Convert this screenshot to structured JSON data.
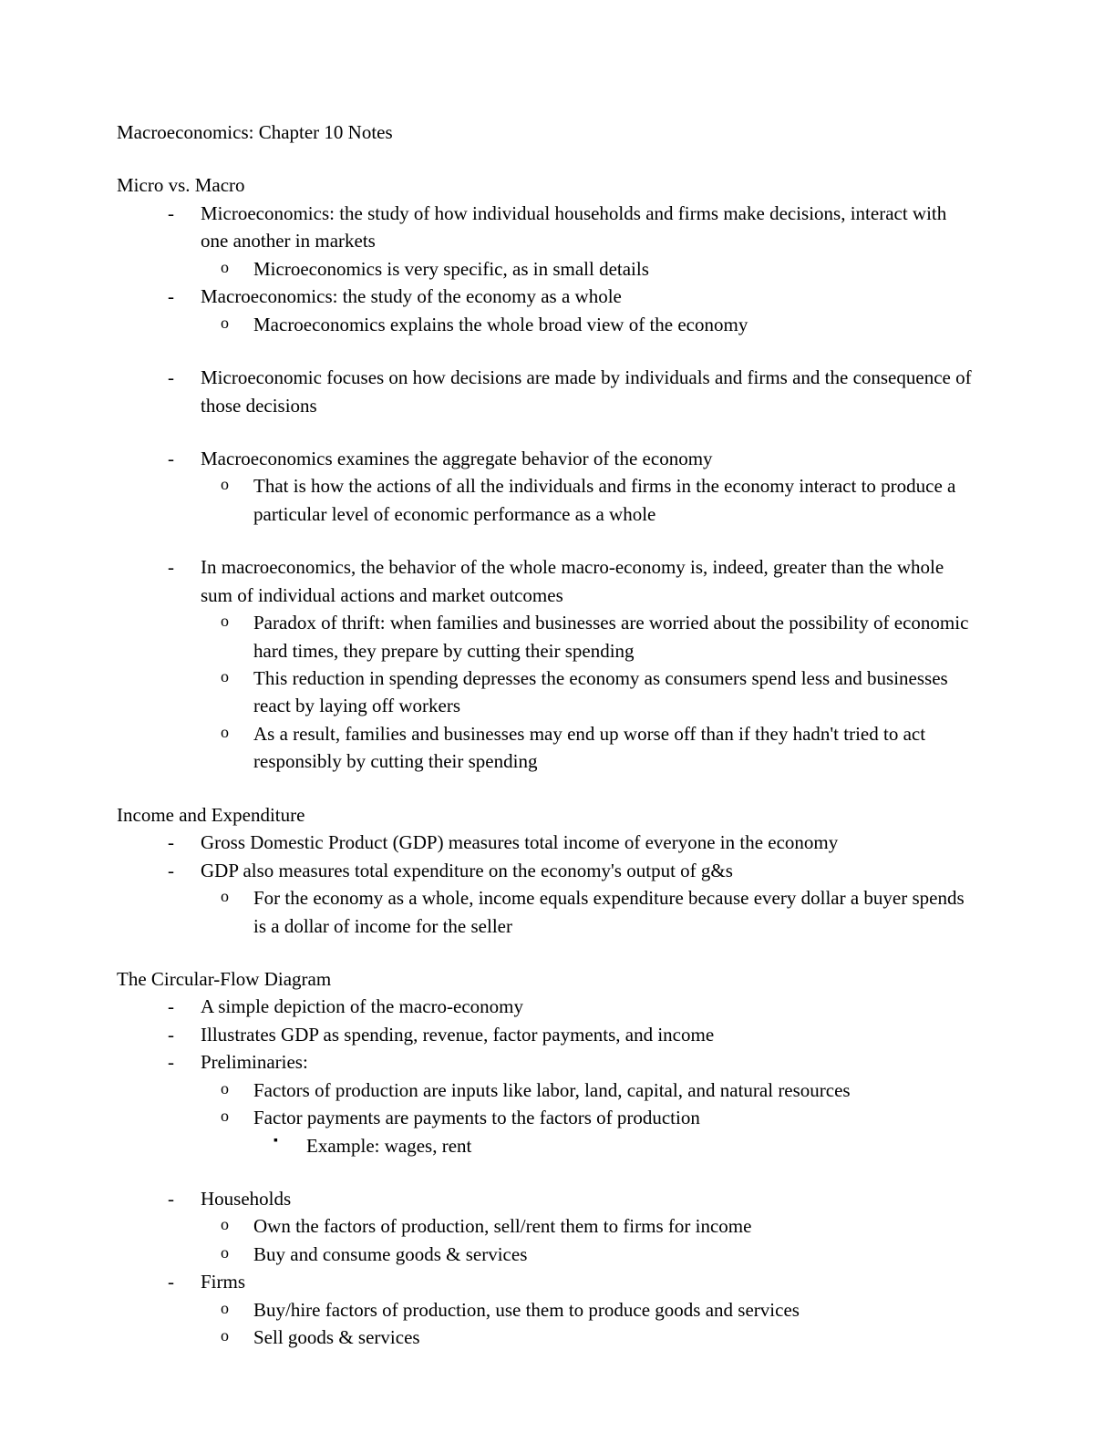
{
  "title": "Macroeconomics: Chapter 10 Notes",
  "section1": {
    "heading": "Micro vs. Macro",
    "i1": "Microeconomics: the study of how individual households and firms make decisions, interact with one another in markets",
    "i1a": "Microeconomics is very specific, as in small details",
    "i2": "Macroeconomics: the study of the economy as a whole",
    "i2a": "Macroeconomics explains the whole broad view of the economy",
    "i3": "Microeconomic focuses on how decisions are made by individuals and firms and the consequence of those decisions",
    "i4": "Macroeconomics examines the aggregate behavior of the economy",
    "i4a": "That is how the actions of all the individuals and firms in the economy interact to produce a particular level of economic performance as a whole",
    "i5": "In macroeconomics, the behavior of the whole macro-economy is, indeed, greater than the whole sum of individual actions and market outcomes",
    "i5a": "Paradox of thrift: when families and businesses are worried about the possibility of economic hard times, they prepare by cutting their spending",
    "i5b": "This reduction in spending depresses the economy as consumers spend less and businesses react by laying off workers",
    "i5c": "As a result, families and businesses may end up worse off than if they hadn't tried to act responsibly by cutting their spending"
  },
  "section2": {
    "heading": "Income and Expenditure",
    "i1": "Gross Domestic Product (GDP) measures total income of everyone in the economy",
    "i2": "GDP also measures total expenditure on the economy's output of g&s",
    "i2a": "For the economy as a whole, income equals expenditure because every dollar a buyer spends is a dollar of income for the seller"
  },
  "section3": {
    "heading": "The Circular-Flow Diagram",
    "i1": "A simple depiction of the macro-economy",
    "i2": "Illustrates GDP as spending, revenue, factor payments, and income",
    "i3": "Preliminaries:",
    "i3a": "Factors of production are inputs like labor, land, capital, and natural resources",
    "i3b": "Factor payments are payments to the factors of production",
    "i3b1": "Example: wages, rent",
    "i4": "Households",
    "i4a": "Own the factors of production, sell/rent them to firms for income",
    "i4b": "Buy and consume goods & services",
    "i5": "Firms",
    "i5a": "Buy/hire factors of production, use them to produce goods and services",
    "i5b": "Sell goods & services"
  }
}
